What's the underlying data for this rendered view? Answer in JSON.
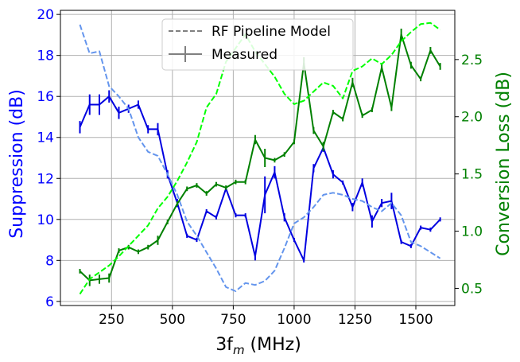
{
  "chart_data": {
    "type": "line",
    "xlabel": "3f",
    "xlabel_sub": "m",
    "xlabel_unit": " (MHz)",
    "ylabel_left": "Suppression (dB)",
    "ylabel_right": "Conversion Loss (dB)",
    "xlim": [
      40,
      1660
    ],
    "ylim_left": [
      5.8,
      20.2
    ],
    "ylim_right": [
      0.35,
      2.93
    ],
    "xticks": [
      250,
      500,
      750,
      1000,
      1250,
      1500
    ],
    "yticks_left": [
      6,
      8,
      10,
      12,
      14,
      16,
      18,
      20
    ],
    "yticks_right": [
      0.5,
      1.0,
      1.5,
      2.0,
      2.5
    ],
    "grid": true,
    "legend": {
      "position": "top-center",
      "entries": [
        "RF Pipeline Model",
        "Measured"
      ]
    },
    "colors": {
      "suppression_measured": "#0000e0",
      "suppression_model": "#6495ed",
      "loss_measured": "#008000",
      "loss_model": "#00ff00",
      "left_axis": "#0000ff",
      "right_axis": "#008000",
      "grid": "#b0b0b0"
    },
    "x": [
      120,
      160,
      200,
      240,
      280,
      320,
      360,
      400,
      440,
      480,
      520,
      560,
      600,
      640,
      680,
      720,
      760,
      800,
      840,
      880,
      920,
      960,
      1000,
      1040,
      1080,
      1120,
      1160,
      1200,
      1240,
      1280,
      1320,
      1360,
      1400,
      1440,
      1480,
      1520,
      1560,
      1600
    ],
    "series": [
      {
        "name": "Suppression Measured",
        "axis": "left",
        "style": "solid",
        "values": [
          14.5,
          15.6,
          15.6,
          16.0,
          15.2,
          15.4,
          15.6,
          14.4,
          14.4,
          12.2,
          10.8,
          9.2,
          9.0,
          10.4,
          10.1,
          11.5,
          10.2,
          10.2,
          8.2,
          11.2,
          12.3,
          10.1,
          9.0,
          8.0,
          12.5,
          13.5,
          12.2,
          11.8,
          10.6,
          11.8,
          9.9,
          10.8,
          10.9,
          8.9,
          8.7,
          9.6,
          9.5,
          10.0
        ],
        "errors": [
          0.3,
          0.5,
          0.5,
          0.3,
          0.3,
          0.2,
          0.2,
          0.2,
          0.3,
          0.2,
          0.2,
          0.1,
          0.1,
          0.1,
          0.1,
          0.1,
          0.1,
          0.1,
          0.2,
          0.9,
          0.3,
          0.2,
          0.1,
          0.1,
          0.2,
          0.2,
          0.2,
          0.1,
          0.2,
          0.2,
          0.3,
          0.2,
          0.4,
          0.1,
          0.1,
          0.1,
          0.1,
          0.1
        ]
      },
      {
        "name": "Suppression Model",
        "axis": "left",
        "style": "dashed",
        "values": [
          19.5,
          18.1,
          18.2,
          16.5,
          16.0,
          15.4,
          14.0,
          13.3,
          13.1,
          12.2,
          11.2,
          9.9,
          9.2,
          8.4,
          7.6,
          6.7,
          6.5,
          6.9,
          6.8,
          7.0,
          7.5,
          8.6,
          9.8,
          10.1,
          10.6,
          11.2,
          11.3,
          11.2,
          11.0,
          10.9,
          10.6,
          10.4,
          10.8,
          10.2,
          8.9,
          8.7,
          8.4,
          8.1
        ]
      },
      {
        "name": "Conversion Loss Measured",
        "axis": "right",
        "style": "solid",
        "values": [
          0.65,
          0.57,
          0.58,
          0.59,
          0.83,
          0.86,
          0.82,
          0.86,
          0.92,
          1.08,
          1.24,
          1.37,
          1.4,
          1.33,
          1.41,
          1.38,
          1.43,
          1.43,
          1.8,
          1.64,
          1.62,
          1.67,
          1.78,
          2.47,
          1.88,
          1.74,
          2.04,
          1.98,
          2.3,
          2.01,
          2.06,
          2.43,
          2.08,
          2.72,
          2.45,
          2.33,
          2.58,
          2.44
        ],
        "errors": [
          0.02,
          0.05,
          0.04,
          0.04,
          0.02,
          0.02,
          0.02,
          0.02,
          0.04,
          0.02,
          0.02,
          0.02,
          0.02,
          0.02,
          0.02,
          0.02,
          0.02,
          0.02,
          0.04,
          0.08,
          0.02,
          0.02,
          0.02,
          0.05,
          0.03,
          0.04,
          0.02,
          0.02,
          0.04,
          0.02,
          0.02,
          0.04,
          0.03,
          0.05,
          0.03,
          0.02,
          0.03,
          0.03
        ]
      },
      {
        "name": "Conversion Loss Model",
        "axis": "right",
        "style": "dashed",
        "values": [
          0.45,
          0.58,
          0.64,
          0.7,
          0.78,
          0.87,
          0.96,
          1.05,
          1.2,
          1.3,
          1.44,
          1.6,
          1.78,
          2.08,
          2.2,
          2.48,
          2.6,
          2.72,
          2.57,
          2.46,
          2.35,
          2.2,
          2.11,
          2.14,
          2.22,
          2.3,
          2.27,
          2.16,
          2.4,
          2.44,
          2.51,
          2.46,
          2.54,
          2.66,
          2.74,
          2.81,
          2.82,
          2.76
        ]
      }
    ]
  }
}
